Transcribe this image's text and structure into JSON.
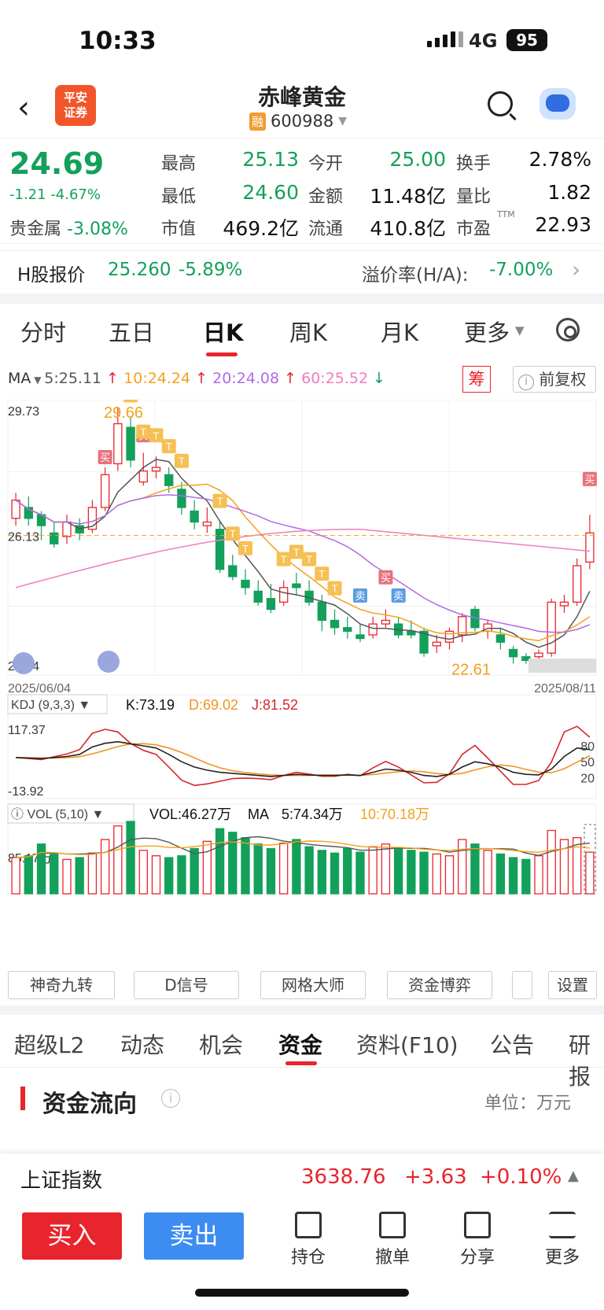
{
  "status_bar": {
    "time": "10:33",
    "network": "4G",
    "battery": "95"
  },
  "header": {
    "broker_logo_line1": "平安",
    "broker_logo_line2": "证券",
    "stock_name": "赤峰黄金",
    "margin_badge": "融",
    "stock_code": "600988",
    "back_icon": "chevron-left-icon",
    "search_icon": "search-icon",
    "assistant_icon": "robot-icon"
  },
  "quote": {
    "price": "24.69",
    "change": "-1.21",
    "change_pct": "-4.67%",
    "sector_label": "贵金属",
    "sector_pct": "-3.08%",
    "stats": [
      {
        "label": "最高",
        "value": "25.13",
        "color": "green"
      },
      {
        "label": "今开",
        "value": "25.00",
        "color": "green"
      },
      {
        "label": "换手",
        "value": "2.78%",
        "color": "dark"
      },
      {
        "label": "最低",
        "value": "24.60",
        "color": "green"
      },
      {
        "label": "金额",
        "value": "11.48亿",
        "color": "dark"
      },
      {
        "label": "量比",
        "value": "1.82",
        "color": "dark"
      },
      {
        "label": "市值",
        "value": "469.2亿",
        "color": "dark"
      },
      {
        "label": "流通",
        "value": "410.8亿",
        "color": "dark"
      },
      {
        "label": "市盈",
        "value": "22.93",
        "color": "dark"
      }
    ],
    "pe_suffix": "TTM"
  },
  "h_share": {
    "label": "H股报价",
    "price": "25.260",
    "pct": "-5.89%",
    "premium_label": "溢价率(H/A):",
    "premium": "-7.00%"
  },
  "period_tabs": [
    "分时",
    "五日",
    "日K",
    "周K",
    "月K",
    "更多"
  ],
  "active_period": "日K",
  "ma_bar": {
    "label": "MA",
    "ma5": "5:25.11",
    "ma10": "10:24.24",
    "ma20": "20:24.08",
    "ma60": "60:25.52",
    "chip_button": "筹",
    "adjust_button": "前复权"
  },
  "colors": {
    "up": "#e8242c",
    "down": "#13a05b",
    "ma5": "#555555",
    "ma10": "#f4a11d",
    "ma20": "#b16be6",
    "ma60": "#f07cbf",
    "k": "#222222",
    "d": "#f39322",
    "j": "#d8262d"
  },
  "kline": {
    "y_max_label": "29.73",
    "y_mid_label": "26.13",
    "y_min_label": "22.34",
    "high_mark": "29.66",
    "low_mark": "22.61",
    "date_start": "2025/06/04",
    "date_end": "2025/08/11",
    "buy_tag": "买",
    "sell_tag": "卖",
    "t_tag": "T"
  },
  "kdj": {
    "label": "KDJ (9,3,3)",
    "k": "K:73.19",
    "d": "D:69.02",
    "j": "J:81.52",
    "y_max": "117.37",
    "y_min": "-13.92",
    "levels": [
      "80",
      "50",
      "20"
    ]
  },
  "vol": {
    "label": "VOL (5,10)",
    "vol": "VOL:46.27万",
    "ma_label": "MA",
    "ma5": "5:74.34万",
    "ma10": "10:70.18万",
    "y_label": "85.17万"
  },
  "tools": [
    "神奇九转",
    "D信号",
    "网格大师",
    "资金博弈",
    "设置"
  ],
  "bottom_tabs": [
    "超级L2",
    "动态",
    "机会",
    "资金",
    "资料(F10)",
    "公告",
    "研报"
  ],
  "active_bottom_tab": "资金",
  "fund_flow": {
    "title": "资金流向",
    "unit": "单位：万元"
  },
  "index_bar": {
    "name": "上证指数",
    "value": "3638.76",
    "change": "+3.63",
    "pct": "+0.10%"
  },
  "actions": {
    "buy": "买入",
    "sell": "卖出",
    "items": [
      "持仓",
      "撤单",
      "分享",
      "更多"
    ]
  }
}
